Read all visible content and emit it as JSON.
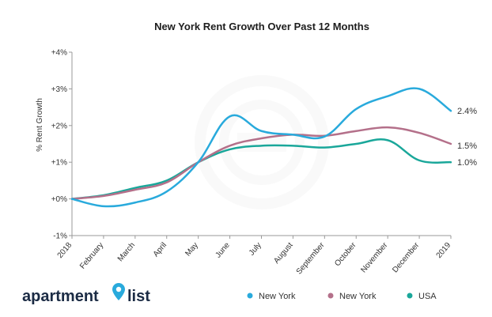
{
  "chart_data": {
    "type": "line",
    "title": "New York Rent Growth Over Past 12 Months",
    "xlabel": "",
    "ylabel": "% Rent Growth",
    "ylim": [
      -1,
      4
    ],
    "yticks": [
      {
        "value": 4,
        "label": "+4%"
      },
      {
        "value": 3,
        "label": "+3%"
      },
      {
        "value": 2,
        "label": "+2%"
      },
      {
        "value": 1,
        "label": "+1%"
      },
      {
        "value": 0,
        "label": "+0%"
      },
      {
        "value": -1,
        "label": "-1%"
      }
    ],
    "categories": [
      "2018",
      "February",
      "March",
      "April",
      "May",
      "June",
      "July",
      "August",
      "September",
      "October",
      "November",
      "December",
      "2019"
    ],
    "series": [
      {
        "name": "New York",
        "color": "#29aadc",
        "end_label": "2.4%",
        "values": [
          0.0,
          -0.2,
          -0.1,
          0.2,
          1.0,
          2.25,
          1.85,
          1.75,
          1.7,
          2.45,
          2.8,
          3.0,
          2.4
        ]
      },
      {
        "name": "New York",
        "color": "#b4708a",
        "end_label": "1.5%",
        "values": [
          0.0,
          0.08,
          0.25,
          0.45,
          1.0,
          1.45,
          1.65,
          1.75,
          1.72,
          1.85,
          1.95,
          1.8,
          1.5
        ]
      },
      {
        "name": "USA",
        "color": "#1aa79a",
        "end_label": "1.0%",
        "values": [
          0.0,
          0.1,
          0.3,
          0.5,
          1.0,
          1.35,
          1.45,
          1.45,
          1.4,
          1.5,
          1.6,
          1.05,
          1.0
        ]
      }
    ],
    "grid": false,
    "legend_position": "bottom-right"
  },
  "brand": {
    "name_part1": "apartment",
    "name_part2": "list",
    "logo_icon": "map-pin-icon",
    "color": "#1b2b44",
    "accent": "#29aadc"
  }
}
